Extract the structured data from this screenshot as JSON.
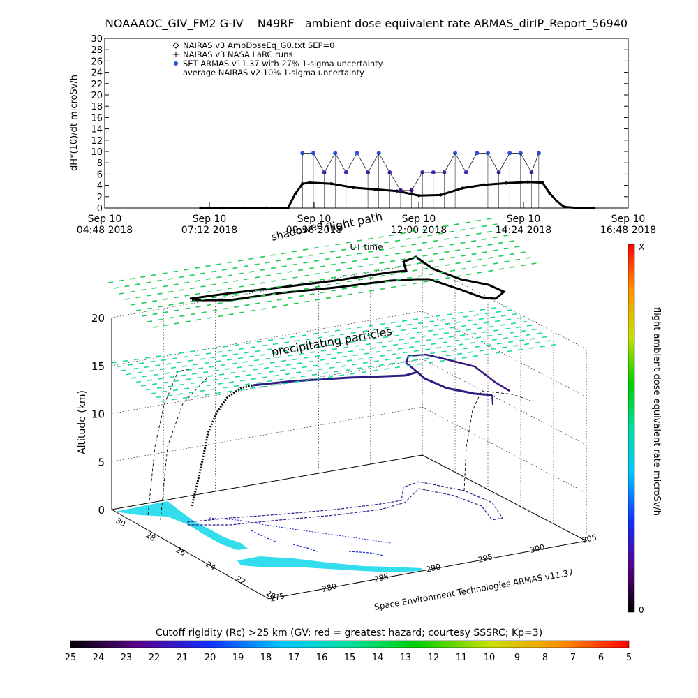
{
  "title": "NOAAAOC_GIV_FM2 G-IV    N49RF   ambient dose equivalent rate ARMAS_dirIP_Report_56940",
  "credit": "Space Environment Technologies ARMAS v11.37",
  "colors": {
    "nairas_v3": "#000000",
    "armas": "#2a55d8",
    "armas_high": "#19c8e8",
    "armas_mid": "#4a28b0",
    "flight_path_shadow": "#000000",
    "ground_dashed": "#000000",
    "land": "#33ddee",
    "grid_particles": "#22cc55"
  },
  "chart_data": [
    {
      "type": "scatter",
      "ylabel": "dH*(10)/dt microSv/h",
      "xlabel": "UT time",
      "ylim": [
        0,
        30
      ],
      "yticks": [
        0,
        2,
        4,
        6,
        8,
        10,
        12,
        14,
        16,
        18,
        20,
        22,
        24,
        26,
        28,
        30
      ],
      "xticks": [
        {
          "date": "Sep 10",
          "time": "04:48 2018"
        },
        {
          "date": "Sep 10",
          "time": "07:12 2018"
        },
        {
          "date": "Sep 10",
          "time": "09:36 2018"
        },
        {
          "date": "Sep 10",
          "time": "12:00 2018"
        },
        {
          "date": "Sep 10",
          "time": "14:24 2018"
        },
        {
          "date": "Sep 10",
          "time": "16:48 2018"
        }
      ],
      "xlim": [
        "04:48",
        "16:48"
      ],
      "legend_position": "top-left",
      "legend": [
        {
          "marker": "diamond",
          "label": "NAIRAS v3 AmbDoseEq_G0.txt SEP=0"
        },
        {
          "marker": "plus",
          "label": "NAIRAS v3 NASA LaRC runs"
        },
        {
          "marker": "dot",
          "label": "SET ARMAS v11.37 with 27% 1-sigma uncertainty"
        },
        {
          "marker": "none",
          "label": "average NAIRAS v2 10% 1-sigma uncertainty"
        }
      ],
      "series": [
        {
          "name": "NAIRAS v3 AmbDoseEq_G0.txt SEP=0",
          "x": [
            "07:00",
            "07:30",
            "08:00",
            "08:30",
            "09:00",
            "09:10",
            "09:20",
            "09:30",
            "10:00",
            "10:30",
            "11:00",
            "11:30",
            "12:00",
            "12:30",
            "13:00",
            "13:30",
            "14:00",
            "14:30",
            "14:50",
            "15:00",
            "15:10",
            "15:20",
            "15:40",
            "16:00"
          ],
          "y": [
            0,
            0,
            0,
            0,
            0,
            2.5,
            4.3,
            4.5,
            4.3,
            3.6,
            3.3,
            3.0,
            2.2,
            2.3,
            3.5,
            4.1,
            4.4,
            4.6,
            4.5,
            2.6,
            1.2,
            0.2,
            0,
            0
          ]
        },
        {
          "name": "SET ARMAS v11.37 with 27% 1-sigma uncertainty",
          "x": [
            "09:20",
            "09:35",
            "09:50",
            "10:05",
            "10:20",
            "10:35",
            "10:50",
            "11:05",
            "11:20",
            "11:35",
            "11:50",
            "12:05",
            "12:20",
            "12:35",
            "12:50",
            "13:05",
            "13:20",
            "13:35",
            "13:50",
            "14:05",
            "14:20",
            "14:35",
            "14:45"
          ],
          "y": [
            9.7,
            9.7,
            6.3,
            9.7,
            6.3,
            9.7,
            6.3,
            9.7,
            6.3,
            3.1,
            3.1,
            6.3,
            6.3,
            6.3,
            9.7,
            6.3,
            9.7,
            9.7,
            6.3,
            9.7,
            9.7,
            6.3,
            9.7
          ]
        }
      ]
    },
    {
      "type": "scatter3d",
      "title": "",
      "zlabel": "Altitude (km)",
      "zticks": [
        0,
        5,
        10,
        15,
        20
      ],
      "ylabels_lat": [
        "30",
        "28",
        "26",
        "24",
        "22",
        "20"
      ],
      "xlabels_lon": [
        "275",
        "280",
        "285",
        "290",
        "295",
        "300",
        "305"
      ],
      "annotations": [
        "shadowed",
        "flight path",
        "precipitating particles"
      ],
      "colorbar": {
        "label": "flight ambient dose equivalent rate microSv/h",
        "min_label": "0",
        "max_label": "X"
      }
    },
    {
      "type": "colorbar",
      "title": "Cutoff rigidity (Rc) >25 km (GV: red = greatest hazard; courtesy SSSRC; Kp=3)",
      "ticks": [
        "25",
        "24",
        "23",
        "22",
        "21",
        "20",
        "19",
        "18",
        "17",
        "16",
        "15",
        "14",
        "13",
        "12",
        "11",
        "10",
        "9",
        "8",
        "7",
        "6",
        "5"
      ]
    }
  ]
}
